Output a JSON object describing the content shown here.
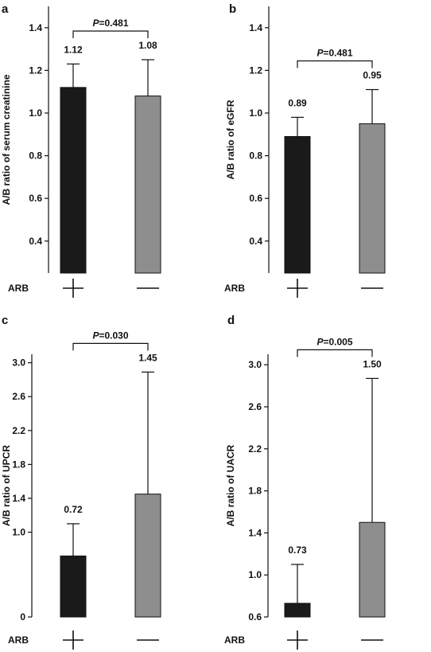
{
  "colors": {
    "arb_plus": "#1a1a1a",
    "arb_minus": "#8e8e8e"
  },
  "group_label": "ARB",
  "category_signs": [
    "+",
    "−"
  ],
  "chart_data": [
    {
      "panel": "a",
      "type": "bar",
      "ylabel": "A/B ratio of serum creatinine",
      "ylim": [
        0.25,
        1.5
      ],
      "yticks": [
        0.4,
        0.6,
        0.8,
        1.0,
        1.2,
        1.4
      ],
      "categories": [
        "+",
        "−"
      ],
      "values": [
        1.12,
        1.08
      ],
      "error_upper": [
        1.23,
        1.25
      ],
      "value_labels": [
        "1.12",
        "1.08"
      ],
      "p_value": "=0.481"
    },
    {
      "panel": "b",
      "type": "bar",
      "ylabel": "A/B ratio of eGFR",
      "ylim": [
        0.25,
        1.5
      ],
      "yticks": [
        0.4,
        0.6,
        0.8,
        1.0,
        1.2,
        1.4
      ],
      "categories": [
        "+",
        "−"
      ],
      "values": [
        0.89,
        0.95
      ],
      "error_upper": [
        0.98,
        1.11
      ],
      "value_labels": [
        "0.89",
        "0.95"
      ],
      "p_value": "=0.481"
    },
    {
      "panel": "c",
      "type": "bar",
      "ylabel": "A/B ratio of UPCR",
      "ylim": [
        0,
        3.1
      ],
      "yticks": [
        0,
        1.0,
        1.4,
        1.8,
        2.2,
        2.6,
        3.0
      ],
      "ytick_labels": [
        "0",
        "1.0",
        "1.4",
        "1.8",
        "2.2",
        "2.6",
        "3.0"
      ],
      "categories": [
        "+",
        "−"
      ],
      "values": [
        0.72,
        1.45
      ],
      "error_upper": [
        1.1,
        2.89
      ],
      "value_labels": [
        "0.72",
        "1.45"
      ],
      "p_value": "=0.030"
    },
    {
      "panel": "d",
      "type": "bar",
      "ylabel": "A/B ratio of UACR",
      "ylim": [
        0.6,
        3.1
      ],
      "yticks": [
        0.6,
        1.0,
        1.4,
        1.8,
        2.2,
        2.6,
        3.0
      ],
      "categories": [
        "+",
        "−"
      ],
      "values": [
        0.73,
        1.5
      ],
      "error_upper": [
        1.1,
        2.87
      ],
      "value_labels": [
        "0.73",
        "1.50"
      ],
      "p_value": "=0.005"
    }
  ]
}
